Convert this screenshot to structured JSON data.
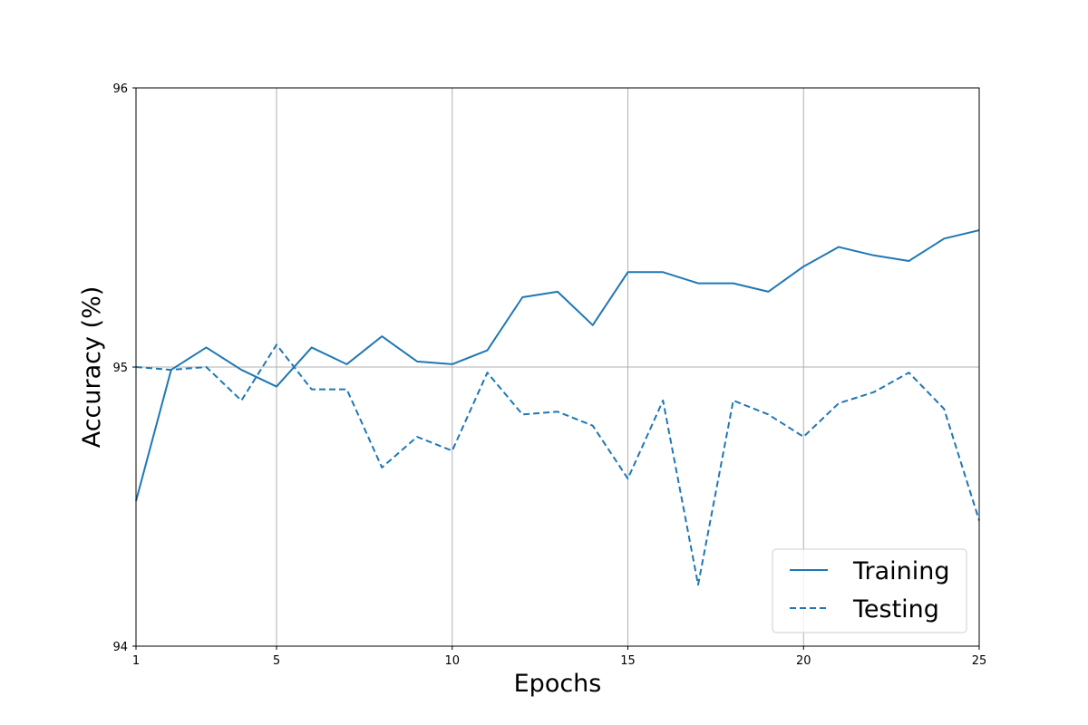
{
  "chart_data": {
    "type": "line",
    "title": "",
    "xlabel": "Epochs",
    "ylabel": "Accuracy (%)",
    "xlim": [
      1,
      25
    ],
    "ylim": [
      94,
      96
    ],
    "xticks": [
      1,
      5,
      10,
      15,
      20,
      25
    ],
    "yticks": [
      94,
      95,
      96
    ],
    "grid": true,
    "legend_position": "lower-right",
    "series": [
      {
        "name": "Training",
        "style": "solid",
        "color": "#1f77b4",
        "x": [
          1,
          2,
          3,
          4,
          5,
          6,
          7,
          8,
          9,
          10,
          11,
          12,
          13,
          14,
          15,
          16,
          17,
          18,
          19,
          20,
          21,
          22,
          23,
          24,
          25
        ],
        "values": [
          94.52,
          94.99,
          95.07,
          94.99,
          94.93,
          95.07,
          95.01,
          95.11,
          95.02,
          95.01,
          95.06,
          95.25,
          95.27,
          95.15,
          95.34,
          95.34,
          95.3,
          95.3,
          95.27,
          95.36,
          95.43,
          95.4,
          95.38,
          95.46,
          95.49
        ]
      },
      {
        "name": "Testing",
        "style": "dashed",
        "color": "#1f77b4",
        "x": [
          1,
          2,
          3,
          4,
          5,
          6,
          7,
          8,
          9,
          10,
          11,
          12,
          13,
          14,
          15,
          16,
          17,
          18,
          19,
          20,
          21,
          22,
          23,
          24,
          25
        ],
        "values": [
          95.0,
          94.99,
          95.0,
          94.88,
          95.08,
          94.92,
          94.92,
          94.64,
          94.75,
          94.7,
          94.98,
          94.83,
          94.84,
          94.79,
          94.6,
          94.88,
          94.22,
          94.88,
          94.83,
          94.75,
          94.87,
          94.91,
          94.98,
          94.85,
          94.45
        ]
      }
    ]
  }
}
